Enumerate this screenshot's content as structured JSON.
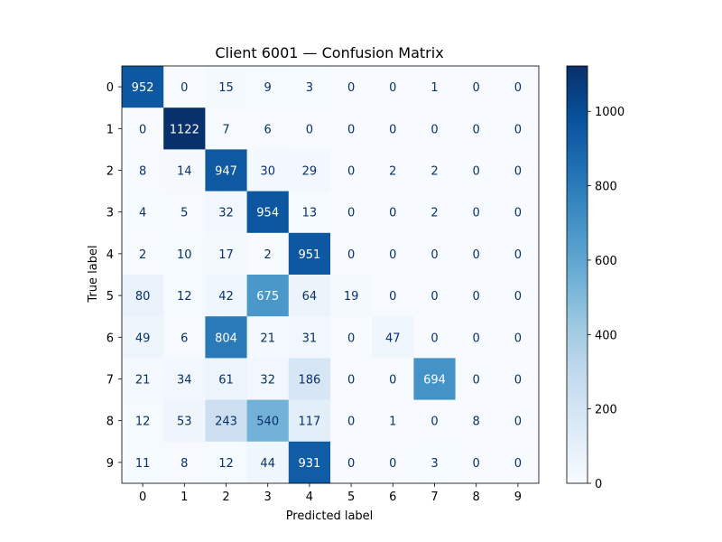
{
  "chart_data": {
    "type": "heatmap",
    "title": "Client 6001 — Confusion Matrix",
    "xlabel": "Predicted label",
    "ylabel": "True label",
    "x_ticks": [
      "0",
      "1",
      "2",
      "3",
      "4",
      "5",
      "6",
      "7",
      "8",
      "9"
    ],
    "y_ticks": [
      "0",
      "1",
      "2",
      "3",
      "4",
      "5",
      "6",
      "7",
      "8",
      "9"
    ],
    "matrix": [
      [
        952,
        0,
        15,
        9,
        3,
        0,
        0,
        1,
        0,
        0
      ],
      [
        0,
        1122,
        7,
        6,
        0,
        0,
        0,
        0,
        0,
        0
      ],
      [
        8,
        14,
        947,
        30,
        29,
        0,
        2,
        2,
        0,
        0
      ],
      [
        4,
        5,
        32,
        954,
        13,
        0,
        0,
        2,
        0,
        0
      ],
      [
        2,
        10,
        17,
        2,
        951,
        0,
        0,
        0,
        0,
        0
      ],
      [
        80,
        12,
        42,
        675,
        64,
        19,
        0,
        0,
        0,
        0
      ],
      [
        49,
        6,
        804,
        21,
        31,
        0,
        47,
        0,
        0,
        0
      ],
      [
        21,
        34,
        61,
        32,
        186,
        0,
        0,
        694,
        0,
        0
      ],
      [
        12,
        53,
        243,
        540,
        117,
        0,
        1,
        0,
        8,
        0
      ],
      [
        11,
        8,
        12,
        44,
        931,
        0,
        0,
        3,
        0,
        0
      ]
    ],
    "colormap": "Blues",
    "colormap_stops": [
      "#f7fbff",
      "#deebf7",
      "#c6dbef",
      "#9ecae1",
      "#6baed6",
      "#4292c6",
      "#2171b5",
      "#08519c",
      "#08306b"
    ],
    "text_color_light": "#ffffff",
    "text_color_dark": "#08306b",
    "colorbar": {
      "min": 0,
      "max": 1122,
      "ticks": [
        "0",
        "200",
        "400",
        "600",
        "800",
        "1000"
      ]
    }
  }
}
